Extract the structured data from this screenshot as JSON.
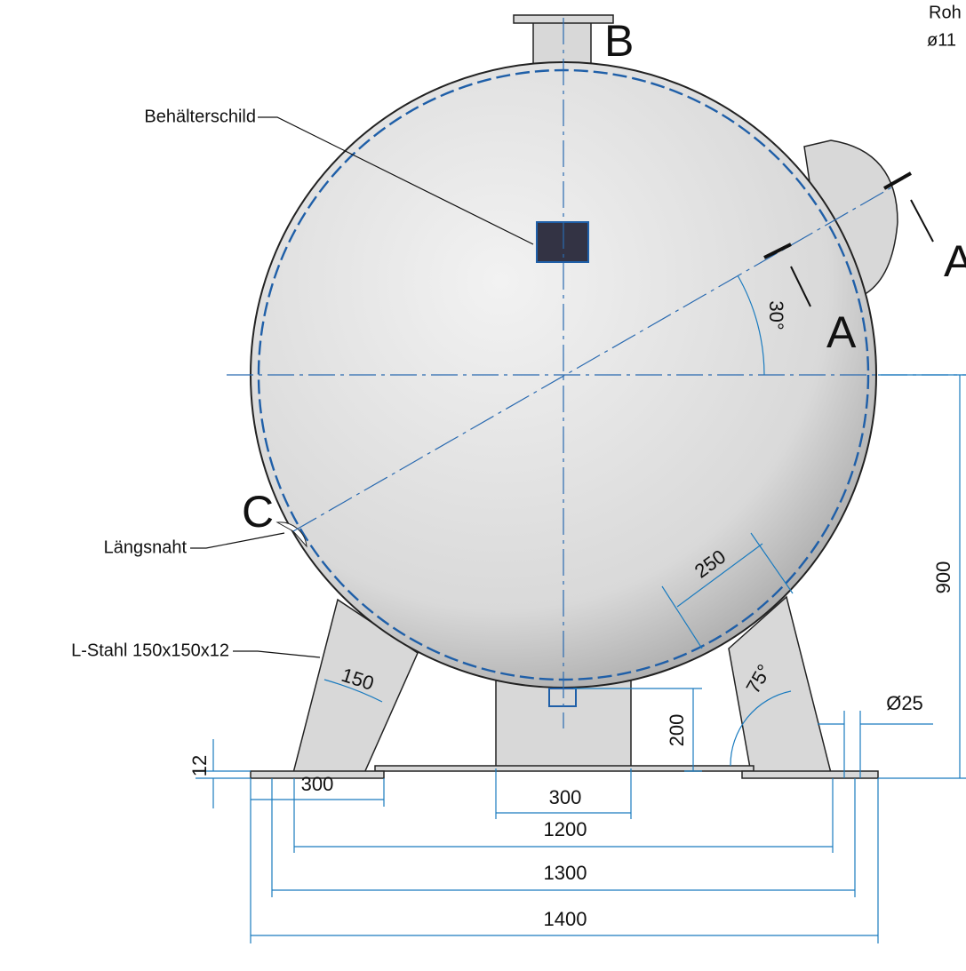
{
  "corner_note": [
    "Roh",
    "ø11"
  ],
  "view_letters": {
    "b": "B",
    "a_arrow": "A",
    "a_section": "A",
    "c": "C"
  },
  "callouts": {
    "nameplate": "Behälterschild",
    "seam": "Längsnaht",
    "leg": "L-Stahl 150x150x12"
  },
  "dimensions": {
    "angle_nozzle": "30°",
    "pad": "250",
    "leg_width": "150",
    "leg_angle": "75°",
    "hole": "Ø25",
    "support_height": "200",
    "center_height": "900",
    "plate_thickness": "12",
    "foot_width": "300",
    "support_width": "300",
    "span_1200": "1200",
    "span_1300": "1300",
    "span_1400": "1400"
  }
}
